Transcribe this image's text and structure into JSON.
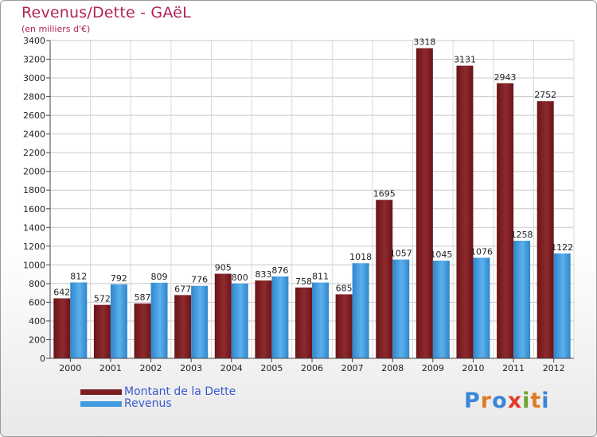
{
  "header": {
    "title": "Revenus/Dette - GAëL",
    "subtitle": "(en milliers d'€)"
  },
  "logo": {
    "text": "Proxiti",
    "letter_colors": [
      "#3a86d8",
      "#e07b22",
      "#3a86d8",
      "#e23a2a",
      "#6aa82e",
      "#e07b22",
      "#3a86d8"
    ]
  },
  "colors": {
    "dette": "#7a1e22",
    "dette_light": "#9b3a3e",
    "revenus": "#3f9be0",
    "revenus_light": "#6ab8ee",
    "title": "#b0245a",
    "legend_text": "#3a5ad0"
  },
  "chart_data": {
    "type": "bar",
    "title": "Revenus/Dette - GAëL",
    "ylabel": "",
    "xlabel": "",
    "ylim": [
      0,
      3400
    ],
    "yticks": [
      0,
      200,
      400,
      600,
      800,
      1000,
      1200,
      1400,
      1600,
      1800,
      2000,
      2200,
      2400,
      2600,
      2800,
      3000,
      3200,
      3400
    ],
    "grid": true,
    "legend_position": "bottom-left",
    "categories": [
      "2000",
      "2001",
      "2002",
      "2003",
      "2004",
      "2005",
      "2006",
      "2007",
      "2008",
      "2009",
      "2010",
      "2011",
      "2012"
    ],
    "series": [
      {
        "name": "Montant de la Dette",
        "values": [
          642,
          572,
          587,
          677,
          905,
          833,
          758,
          685,
          1695,
          3318,
          3131,
          2943,
          2752
        ]
      },
      {
        "name": "Revenus",
        "values": [
          812,
          792,
          809,
          776,
          800,
          876,
          811,
          1018,
          1057,
          1045,
          1076,
          1258,
          1122
        ]
      }
    ]
  }
}
